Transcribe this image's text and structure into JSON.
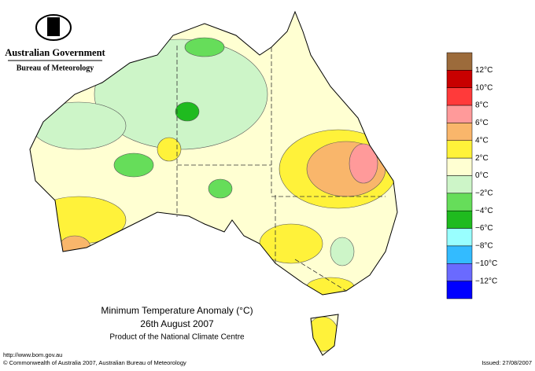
{
  "header": {
    "org": "Australian Government",
    "dept": "Bureau of Meteorology"
  },
  "legend": {
    "colors": [
      "#9c6b3b",
      "#c80000",
      "#ff3a3a",
      "#ff9a9a",
      "#f9b66b",
      "#fff23a",
      "#ffffd2",
      "#cdf5c8",
      "#66dd5a",
      "#1fbb1f",
      "#99ffff",
      "#33bbff",
      "#6a6aff",
      "#0000ff"
    ],
    "labels": [
      "12°C",
      "10°C",
      "8°C",
      "6°C",
      "4°C",
      "2°C",
      "0°C",
      "−2°C",
      "−4°C",
      "−6°C",
      "−8°C",
      "−10°C",
      "−12°C"
    ]
  },
  "title": "Minimum Temperature Anomaly (°C)",
  "date": "26th August 2007",
  "product": "Product of the National Climate Centre",
  "footer": {
    "url": "http://www.bom.gov.au",
    "copyright": "© Commonwealth of Australia 2007, Australian Bureau of Meteorology",
    "issued": "Issued: 27/08/2007"
  }
}
